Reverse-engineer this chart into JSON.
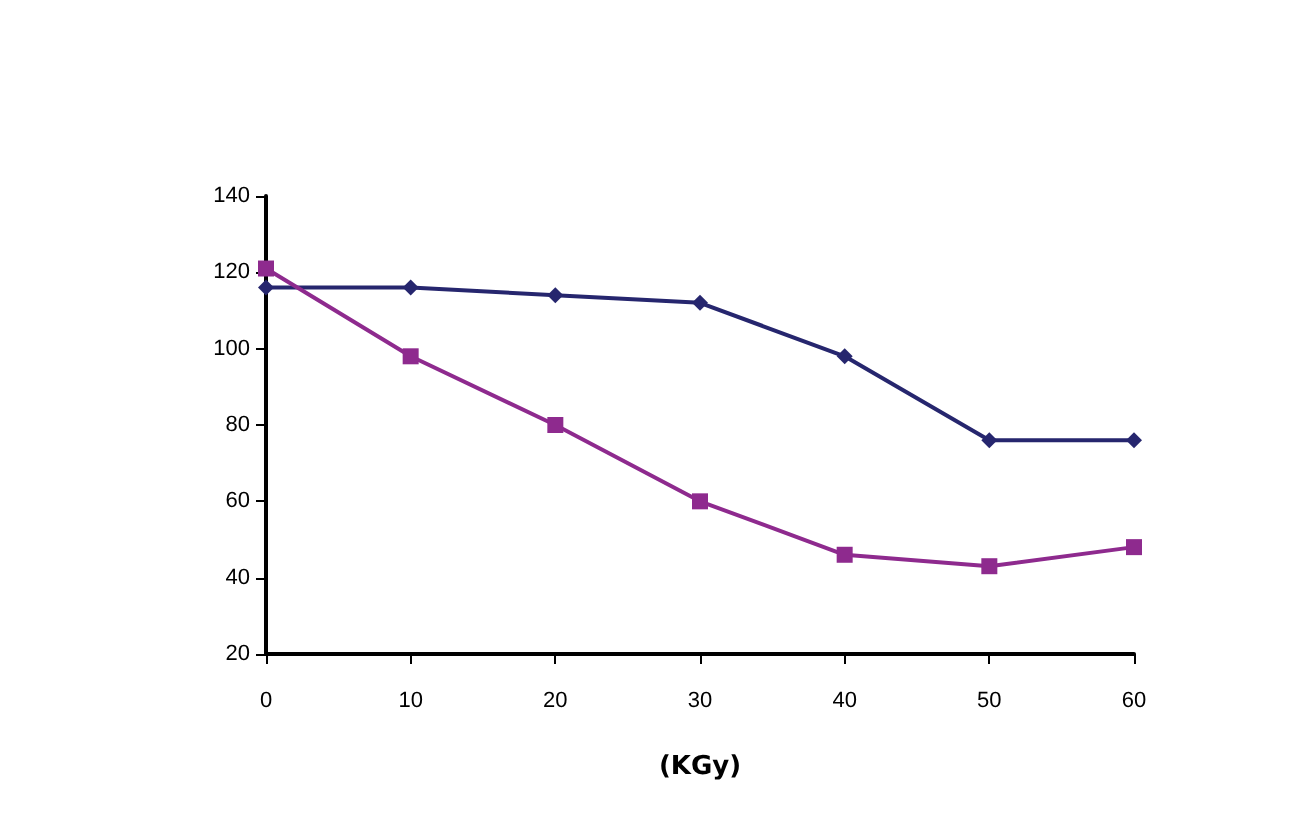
{
  "chart_data": {
    "type": "line",
    "xlabel": "(KGy)",
    "categories": [
      "0",
      "10",
      "20",
      "30",
      "40",
      "50",
      "60"
    ],
    "series": [
      {
        "color": "#26266e",
        "marker": "diamond",
        "values": [
          116,
          116,
          114,
          112,
          98,
          76,
          76
        ]
      },
      {
        "color": "#8e2a8e",
        "marker": "square",
        "values": [
          121,
          98,
          80,
          60,
          46,
          43,
          48
        ]
      }
    ],
    "ylim": [
      20,
      140
    ],
    "yticks": [
      20,
      40,
      60,
      80,
      100,
      120,
      140
    ],
    "grid": false,
    "line_style": "solid"
  }
}
